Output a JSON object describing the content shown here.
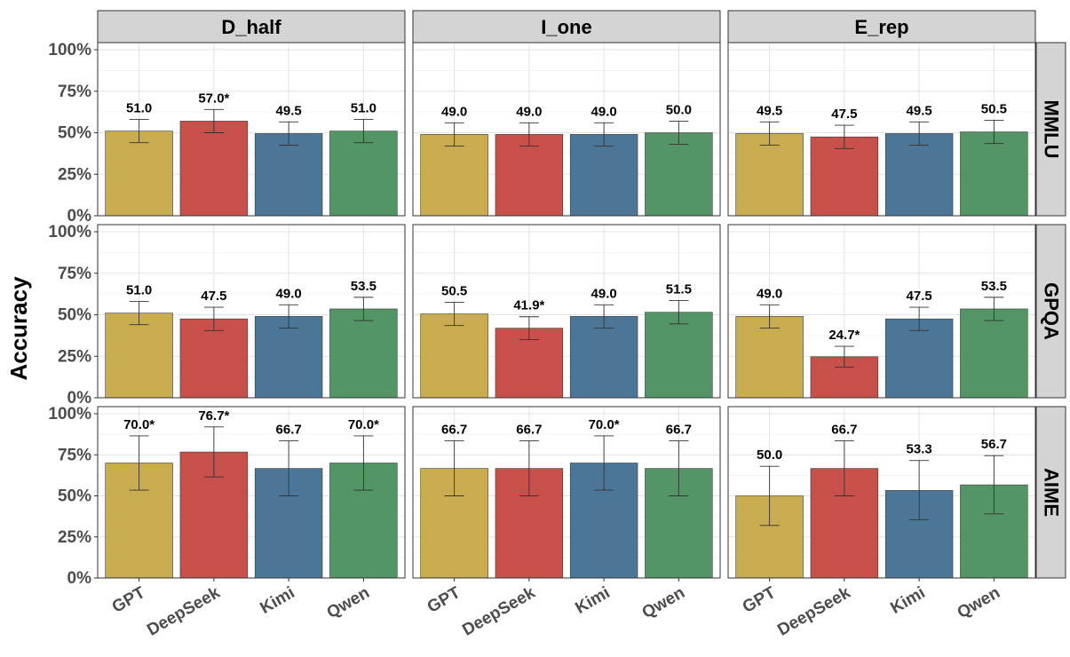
{
  "chart_data": {
    "type": "bar",
    "layout": "faceted-grid",
    "ylabel": "Accuracy",
    "xlabel": "",
    "ylim": [
      0,
      100
    ],
    "y_ticks": [
      "0%",
      "25%",
      "50%",
      "75%",
      "100%"
    ],
    "y_tick_values": [
      0,
      25,
      50,
      75,
      100
    ],
    "grid": true,
    "legend": "none",
    "columns": [
      "D_half",
      "I_one",
      "E_rep"
    ],
    "rows": [
      "MMLU",
      "GPQA",
      "AIME"
    ],
    "categories": [
      "GPT",
      "DeepSeek",
      "Kimi",
      "Qwen"
    ],
    "colors": [
      "#c9ab50",
      "#c8504b",
      "#4b7698",
      "#539565"
    ],
    "error_bar_color": "#333333",
    "panels": [
      {
        "row": "MMLU",
        "column": "D_half",
        "values": [
          51.0,
          57.0,
          49.5,
          51.0
        ],
        "labels": [
          "51.0",
          "57.0*",
          "49.5",
          "51.0"
        ],
        "error_low": [
          44,
          50,
          42.5,
          44
        ],
        "error_high": [
          58,
          64,
          56.5,
          58
        ]
      },
      {
        "row": "MMLU",
        "column": "I_one",
        "values": [
          49.0,
          49.0,
          49.0,
          50.0
        ],
        "labels": [
          "49.0",
          "49.0",
          "49.0",
          "50.0"
        ],
        "error_low": [
          42,
          42,
          42,
          43
        ],
        "error_high": [
          56,
          56,
          56,
          57
        ]
      },
      {
        "row": "MMLU",
        "column": "E_rep",
        "values": [
          49.5,
          47.5,
          49.5,
          50.5
        ],
        "labels": [
          "49.5",
          "47.5",
          "49.5",
          "50.5"
        ],
        "error_low": [
          42.5,
          40.5,
          42.5,
          43.5
        ],
        "error_high": [
          56.5,
          54.5,
          56.5,
          57.5
        ]
      },
      {
        "row": "GPQA",
        "column": "D_half",
        "values": [
          51.0,
          47.5,
          49.0,
          53.5
        ],
        "labels": [
          "51.0",
          "47.5",
          "49.0",
          "53.5"
        ],
        "error_low": [
          44,
          40.5,
          42,
          46.5
        ],
        "error_high": [
          58,
          54.5,
          56,
          60.5
        ]
      },
      {
        "row": "GPQA",
        "column": "I_one",
        "values": [
          50.5,
          41.9,
          49.0,
          51.5
        ],
        "labels": [
          "50.5",
          "41.9*",
          "49.0",
          "51.5"
        ],
        "error_low": [
          43.5,
          35,
          42,
          44.5
        ],
        "error_high": [
          57.5,
          48.8,
          56,
          58.5
        ]
      },
      {
        "row": "GPQA",
        "column": "E_rep",
        "values": [
          49.0,
          24.7,
          47.5,
          53.5
        ],
        "labels": [
          "49.0",
          "24.7*",
          "47.5",
          "53.5"
        ],
        "error_low": [
          42,
          18.5,
          40.5,
          46.5
        ],
        "error_high": [
          56,
          31,
          54.5,
          60.5
        ]
      },
      {
        "row": "AIME",
        "column": "D_half",
        "values": [
          70.0,
          76.7,
          66.7,
          70.0
        ],
        "labels": [
          "70.0*",
          "76.7*",
          "66.7",
          "70.0*"
        ],
        "error_low": [
          53.5,
          61.5,
          50,
          53.5
        ],
        "error_high": [
          86.5,
          92,
          83.5,
          86.5
        ]
      },
      {
        "row": "AIME",
        "column": "I_one",
        "values": [
          66.7,
          66.7,
          70.0,
          66.7
        ],
        "labels": [
          "66.7",
          "66.7",
          "70.0*",
          "66.7"
        ],
        "error_low": [
          50,
          50,
          53.5,
          50
        ],
        "error_high": [
          83.5,
          83.5,
          86.5,
          83.5
        ]
      },
      {
        "row": "AIME",
        "column": "E_rep",
        "values": [
          50.0,
          66.7,
          53.3,
          56.7
        ],
        "labels": [
          "50.0",
          "66.7",
          "53.3",
          "56.7"
        ],
        "error_low": [
          32,
          50,
          35.5,
          39
        ],
        "error_high": [
          68,
          83.5,
          71.5,
          74.5
        ]
      }
    ]
  }
}
